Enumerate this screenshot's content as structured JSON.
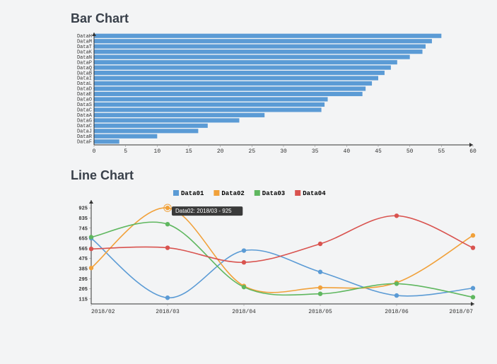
{
  "bar_chart": {
    "title": "Bar Chart",
    "type": "bar-horizontal",
    "bar_color": "#5b9bd5",
    "background_color": "#f3f4f5",
    "axis_color": "#333333",
    "tick_color": "#888888",
    "label_font": "Courier New",
    "label_fontsize": 7,
    "xlim": [
      0,
      60
    ],
    "xtick_step": 5,
    "categories": [
      "DataH",
      "DataM",
      "DataT",
      "DataK",
      "DataN",
      "DataP",
      "DataQ",
      "DataB",
      "DataI",
      "DataL",
      "DataD",
      "DataE",
      "DataO",
      "DataS",
      "DataC",
      "DataA",
      "DataG",
      "DataC",
      "DataJ",
      "DataR",
      "DataF"
    ],
    "values": [
      55,
      53.5,
      52.5,
      52,
      50,
      48,
      47,
      46,
      45,
      44,
      43,
      42.5,
      37,
      36.5,
      36,
      27,
      23,
      18,
      16.5,
      10,
      4
    ],
    "bar_gap_ratio": 0.18
  },
  "line_chart": {
    "title": "Line Chart",
    "type": "line",
    "background_color": "#f3f4f5",
    "axis_color": "#333333",
    "grid": false,
    "marker_radius": 3.2,
    "line_width": 1.6,
    "curve": "smooth",
    "x_labels": [
      "2018/02",
      "2018/03",
      "2018/04",
      "2018/05",
      "2018/06",
      "2018/07"
    ],
    "ylim": [
      70,
      970
    ],
    "yticks": [
      115,
      205,
      295,
      385,
      475,
      565,
      655,
      745,
      835,
      925
    ],
    "series": [
      {
        "name": "Data01",
        "color": "#5b9bd5",
        "values": [
          655,
          125,
          545,
          355,
          145,
          210
        ]
      },
      {
        "name": "Data02",
        "color": "#f1a13a",
        "values": [
          390,
          925,
          230,
          215,
          260,
          680
        ]
      },
      {
        "name": "Data03",
        "color": "#5fb75f",
        "values": [
          665,
          780,
          220,
          160,
          250,
          130
        ]
      },
      {
        "name": "Data04",
        "color": "#d9534f",
        "values": [
          560,
          570,
          440,
          605,
          855,
          570
        ]
      }
    ],
    "tooltip": {
      "series": "Data02",
      "x": "2018/03",
      "value": 925,
      "text": "Data02: 2018/03 - 925"
    }
  }
}
